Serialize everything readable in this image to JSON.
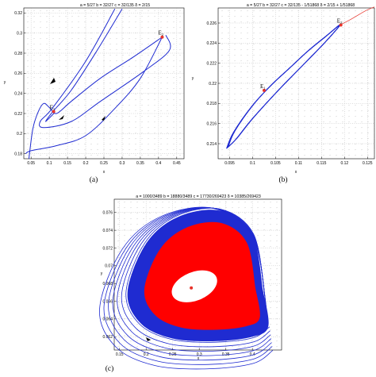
{
  "chart_data": [
    {
      "type": "line",
      "panel": "a",
      "title": "a = 5/27   b = 32/27   c = 32/135   δ = 2/15",
      "xlabel": "x",
      "ylabel": "y",
      "xlim": [
        0.03,
        0.47
      ],
      "ylim": [
        0.175,
        0.325
      ],
      "grid": true,
      "xticks": [
        0.05,
        0.1,
        0.15,
        0.2,
        0.25,
        0.3,
        0.35,
        0.4,
        0.45
      ],
      "xtick_labels": [
        "0.05",
        "0.1",
        "0.15",
        "0.2",
        "0.25",
        "0.3",
        "0.35",
        "0.4",
        "0.45"
      ],
      "yticks": [
        0.18,
        0.2,
        0.22,
        0.24,
        0.26,
        0.28,
        0.3,
        0.32
      ],
      "ytick_labels": [
        "0.18",
        "0.2",
        "0.22",
        "0.24",
        "0.26",
        "0.28",
        "0.3",
        "0.32"
      ],
      "series": [
        {
          "values": [
            [
              0.42,
              0.298
            ],
            [
              0.43,
              0.283
            ],
            [
              0.36,
              0.262
            ],
            [
              0.24,
              0.232
            ],
            [
              0.16,
              0.212
            ],
            [
              0.085,
              0.206
            ],
            [
              0.075,
              0.212
            ],
            [
              0.11,
              0.226
            ],
            [
              0.2,
              0.272
            ],
            [
              0.28,
              0.324
            ]
          ]
        },
        {
          "values": [
            [
              0.3,
              0.324
            ],
            [
              0.23,
              0.282
            ],
            [
              0.16,
              0.243
            ],
            [
              0.11,
              0.222
            ],
            [
              0.09,
              0.212
            ],
            [
              0.115,
              0.221
            ]
          ]
        },
        {
          "values": [
            [
              0.044,
              0.175
            ],
            [
              0.055,
              0.205
            ],
            [
              0.07,
              0.222
            ],
            [
              0.085,
              0.23
            ],
            [
              0.1,
              0.226
            ],
            [
              0.12,
              0.22
            ],
            [
              0.16,
              0.232
            ],
            [
              0.24,
              0.255
            ],
            [
              0.33,
              0.276
            ],
            [
              0.41,
              0.296
            ]
          ]
        },
        {
          "values": [
            [
              0.41,
              0.296
            ],
            [
              0.35,
              0.255
            ],
            [
              0.28,
              0.225
            ],
            [
              0.2,
              0.198
            ],
            [
              0.12,
              0.188
            ],
            [
              0.05,
              0.183
            ],
            [
              0.035,
              0.18
            ]
          ]
        }
      ],
      "equilibria": [
        {
          "label": "E",
          "subscript": "1",
          "x": 0.112,
          "y": 0.222,
          "color": "#e8332a"
        },
        {
          "label": "E",
          "subscript": "2",
          "x": 0.41,
          "y": 0.296,
          "color": "#e8332a"
        }
      ],
      "colors": {
        "trajectory": "#1f2bd1",
        "equilibrium": "#e8332a",
        "arrow": "#000000"
      }
    },
    {
      "type": "line",
      "panel": "b",
      "title": "a = 5/27   b = 32/27   c = 32/135 - 1/51868   δ = 2/15 + 1/51868",
      "xlabel": "x",
      "ylabel": "y",
      "xlim": [
        0.0925,
        0.1265
      ],
      "ylim": [
        0.2125,
        0.2275
      ],
      "grid": true,
      "xticks": [
        0.095,
        0.1,
        0.105,
        0.11,
        0.115,
        0.12,
        0.125
      ],
      "xtick_labels": [
        "0.095",
        "0.1",
        "0.105",
        "0.11",
        "0.115",
        "0.12",
        "0.125"
      ],
      "yticks": [
        0.214,
        0.216,
        0.218,
        0.22,
        0.222,
        0.224,
        0.226
      ],
      "ytick_labels": [
        "0.214",
        "0.216",
        "0.218",
        "0.22",
        "0.222",
        "0.224",
        "0.226"
      ],
      "series": [
        {
          "values": [
            [
              0.0945,
              0.2136
            ],
            [
              0.096,
              0.2152
            ],
            [
              0.1,
              0.2178
            ],
            [
              0.104,
              0.2198
            ],
            [
              0.108,
              0.2215
            ],
            [
              0.112,
              0.2232
            ],
            [
              0.116,
              0.2247
            ],
            [
              0.119,
              0.2258
            ],
            [
              0.116,
              0.2242
            ],
            [
              0.112,
              0.2223
            ],
            [
              0.106,
              0.2195
            ],
            [
              0.1,
              0.2165
            ],
            [
              0.0965,
              0.2145
            ],
            [
              0.0945,
              0.2136
            ]
          ]
        },
        {
          "values": [
            [
              0.119,
              0.2258
            ],
            [
              0.1215,
              0.2264
            ],
            [
              0.1245,
              0.2272
            ],
            [
              0.1265,
              0.2276
            ]
          ]
        }
      ],
      "equilibria": [
        {
          "label": "E",
          "subscript": "1",
          "x": 0.1025,
          "y": 0.2193,
          "color": "#e8332a"
        },
        {
          "label": "E",
          "subscript": "2",
          "x": 0.1192,
          "y": 0.2258,
          "color": "#e8332a"
        }
      ],
      "colors": {
        "trajectory": "#1f2bd1",
        "unstable_manifold": "#e8332a",
        "equilibrium": "#e8332a"
      }
    },
    {
      "type": "line",
      "panel": "c",
      "title": "a = 1000/3489   b = 18880/3489   c = 17730/269423   δ = 10385/269423",
      "xlabel": "x",
      "ylabel": "y",
      "xlim": [
        0.14,
        0.455
      ],
      "ylim": [
        0.0605,
        0.0775
      ],
      "grid": true,
      "xticks": [
        0.15,
        0.2,
        0.25,
        0.3,
        0.35,
        0.4
      ],
      "xtick_labels": [
        "0.15",
        "0.2",
        "0.25",
        "0.3",
        "0.35",
        "0.4"
      ],
      "yticks": [
        0.062,
        0.064,
        0.066,
        0.068,
        0.07,
        0.072,
        0.074,
        0.076
      ],
      "ytick_labels": [
        "0.062",
        "0.064",
        "0.066",
        "0.068",
        "0.07",
        "0.072",
        "0.074",
        "0.076"
      ],
      "series": [
        {
          "values": [
            [
              0.42,
              0.0672
            ],
            [
              0.4,
              0.0735
            ],
            [
              0.34,
              0.0762
            ],
            [
              0.26,
              0.0755
            ],
            [
              0.2,
              0.0725
            ],
            [
              0.165,
              0.067
            ],
            [
              0.19,
              0.0635
            ],
            [
              0.25,
              0.0618
            ],
            [
              0.33,
              0.0615
            ],
            [
              0.4,
              0.062
            ],
            [
              0.43,
              0.0632
            ]
          ]
        }
      ],
      "equilibria": [
        {
          "x": 0.285,
          "y": 0.0675,
          "color": "#e8332a"
        }
      ],
      "colors": {
        "outer_trajectory": "#1f2bd1",
        "filled_band": "#ff0000",
        "equilibrium": "#e8332a"
      }
    }
  ],
  "captions": [
    "(a)",
    "(b)",
    "(c)"
  ]
}
